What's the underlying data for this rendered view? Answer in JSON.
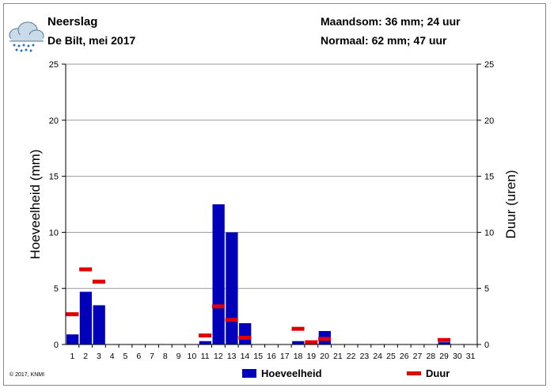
{
  "header": {
    "title": "Neerslag",
    "subtitle": "De Bilt, mei 2017",
    "month_sum": "Maandsom: 36 mm; 24 uur",
    "normal": "Normaal: 62 mm; 47 uur",
    "icon": "rain-cloud-icon"
  },
  "footer": {
    "copyright": "© 2017, KNMI"
  },
  "chart_data": {
    "type": "bar",
    "title": "",
    "ylabel": "Hoeveelheid (mm)",
    "y2label": "Duur (uren)",
    "xlabel": "",
    "ylim": [
      0,
      25
    ],
    "y2lim": [
      0,
      25
    ],
    "yticks": [
      "0",
      "5",
      "10",
      "15",
      "20",
      "25"
    ],
    "grid": true,
    "legend_position": "bottom",
    "categories": [
      "1",
      "2",
      "3",
      "4",
      "5",
      "6",
      "7",
      "8",
      "9",
      "10",
      "11",
      "12",
      "13",
      "14",
      "15",
      "16",
      "17",
      "18",
      "19",
      "20",
      "21",
      "22",
      "23",
      "24",
      "25",
      "26",
      "27",
      "28",
      "29",
      "30",
      "31"
    ],
    "series": [
      {
        "name": "Hoeveelheid",
        "type": "bar",
        "color": "#0000bb",
        "values": [
          0.9,
          4.7,
          3.5,
          0,
          0,
          0,
          0,
          0,
          0,
          0,
          0.3,
          12.5,
          10.0,
          1.9,
          0,
          0,
          0,
          0.3,
          0,
          1.2,
          0,
          0,
          0,
          0,
          0,
          0,
          0,
          0,
          0.2,
          0,
          0
        ]
      },
      {
        "name": "Duur",
        "type": "marker",
        "color": "#e00000",
        "values": [
          2.7,
          6.7,
          5.6,
          null,
          null,
          null,
          null,
          null,
          null,
          null,
          0.8,
          3.4,
          2.2,
          0.6,
          null,
          null,
          null,
          1.4,
          0.2,
          0.5,
          null,
          null,
          null,
          null,
          null,
          null,
          null,
          null,
          0.4,
          null,
          null
        ]
      }
    ]
  }
}
